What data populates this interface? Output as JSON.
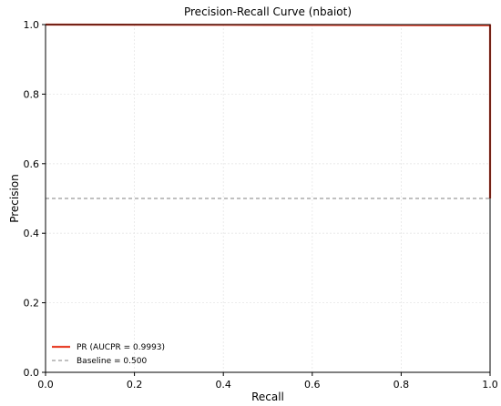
{
  "chart_data": {
    "type": "line",
    "title": "Precision-Recall Curve (nbaiot)",
    "xlabel": "Recall",
    "ylabel": "Precision",
    "xlim": [
      0.0,
      1.0
    ],
    "ylim": [
      0.0,
      1.0
    ],
    "xticks": [
      "0.0",
      "0.2",
      "0.4",
      "0.6",
      "0.8",
      "1.0"
    ],
    "yticks": [
      "0.0",
      "0.2",
      "0.4",
      "0.6",
      "0.8",
      "1.0"
    ],
    "grid": true,
    "legend_position": "bottom-left",
    "series": [
      {
        "name": "PR (AUCPR = 0.9993)",
        "color": "#e8432d",
        "style": "solid",
        "x": [
          0.0,
          0.5,
          1.0,
          1.0
        ],
        "y": [
          1.0,
          0.999,
          0.998,
          0.5
        ]
      },
      {
        "name": "Baseline = 0.500",
        "color": "#808080",
        "style": "dashed",
        "x": [
          0.0,
          1.0
        ],
        "y": [
          0.5,
          0.5
        ]
      }
    ]
  }
}
